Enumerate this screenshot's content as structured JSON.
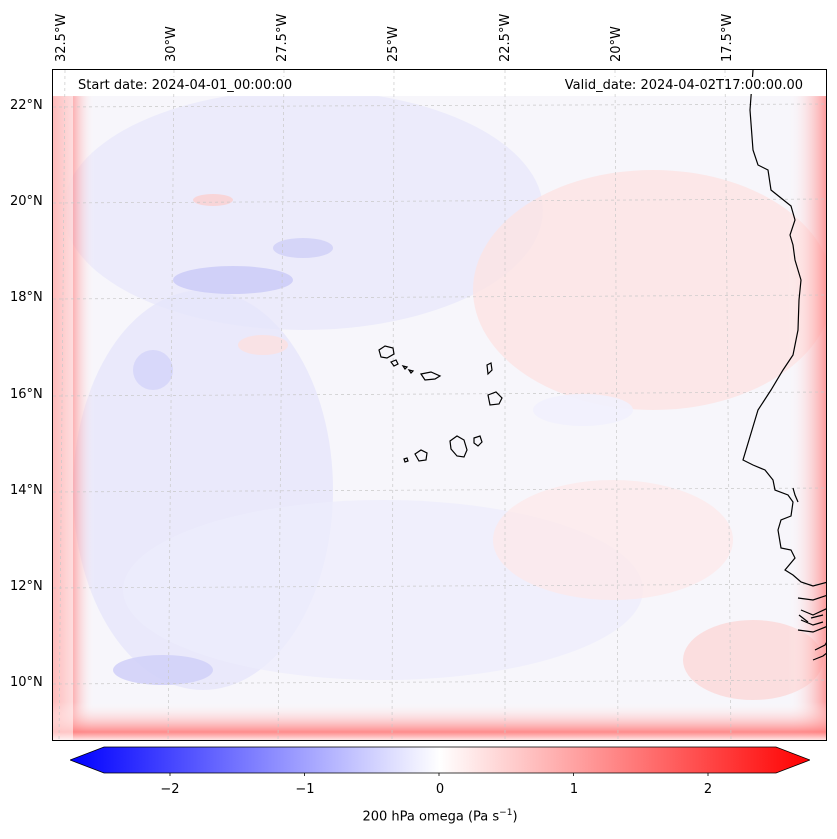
{
  "map": {
    "start_date": "Start date: 2024-04-01_00:00:00",
    "valid_date": "Valid_date: 2024-04-02T17:00:00.00",
    "variable": "200 hPa omega",
    "units_prefix": "200 hPa omega (Pa s",
    "units_exp": "−1",
    "units_suffix": ")",
    "lon_labels": [
      "32.5°W",
      "30°W",
      "27.5°W",
      "25°W",
      "22.5°W",
      "20°W",
      "17.5°W"
    ],
    "lat_labels": [
      "22°N",
      "20°N",
      "18°N",
      "16°N",
      "14°N",
      "12°N",
      "10°N"
    ],
    "colors": {
      "negative": "#0000ff",
      "neutral": "#ffffff",
      "positive": "#ff0000",
      "coastline": "#000000",
      "gridline": "#c8c8c8"
    }
  },
  "colorbar": {
    "min": -2.75,
    "max": 2.75,
    "ticks": [
      "−2",
      "−1",
      "0",
      "1",
      "2"
    ],
    "tick_values": [
      -2,
      -1,
      0,
      1,
      2
    ],
    "extend": "both"
  }
}
